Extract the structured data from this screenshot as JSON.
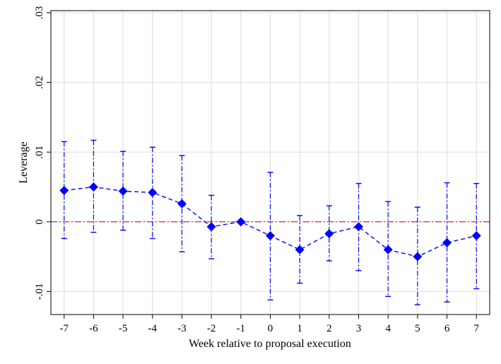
{
  "chart_data": {
    "type": "scatter",
    "xlabel": "Week relative to proposal execution",
    "ylabel": "Leverage",
    "x": [
      -7,
      -6,
      -5,
      -4,
      -3,
      -2,
      -1,
      0,
      1,
      2,
      3,
      4,
      5,
      6,
      7
    ],
    "series": [
      {
        "values": [
          0.0045,
          0.005,
          0.0044,
          0.0042,
          0.0026,
          -0.0007,
          0.0,
          -0.002,
          -0.004,
          -0.0017,
          -0.0007,
          -0.004,
          -0.005,
          -0.003,
          -0.002
        ],
        "ci_upper": [
          0.0115,
          0.0117,
          0.0101,
          0.0107,
          0.0095,
          0.0038,
          0.0,
          0.0071,
          0.0009,
          0.0023,
          0.0055,
          0.0029,
          0.0021,
          0.0056,
          0.0055
        ],
        "ci_lower": [
          -0.0024,
          -0.0015,
          -0.0012,
          -0.0024,
          -0.0043,
          -0.0053,
          0.0,
          -0.0112,
          -0.0088,
          -0.0056,
          -0.007,
          -0.0107,
          -0.0119,
          -0.0115,
          -0.0096
        ],
        "color": "#0000ff",
        "marker": "diamond",
        "line_style": "dashed"
      }
    ],
    "xticks": [
      -7,
      -6,
      -5,
      -4,
      -3,
      -2,
      -1,
      0,
      1,
      2,
      3,
      4,
      5,
      6,
      7
    ],
    "xtick_labels": [
      "-7",
      "-6",
      "-5",
      "-4",
      "-3",
      "-2",
      "-1",
      "0",
      "1",
      "2",
      "3",
      "4",
      "5",
      "6",
      "7"
    ],
    "yticks": [
      -0.01,
      0,
      0.01,
      0.02,
      0.03
    ],
    "ytick_labels": [
      "-.01",
      "0",
      ".01",
      ".02",
      ".03"
    ],
    "xlim": [
      -7.45,
      7.45
    ],
    "ylim": [
      -0.0133,
      0.0303
    ],
    "reference_line": {
      "y": 0,
      "color": "#b22222",
      "style": "dash-dot"
    },
    "grid": true,
    "grid_color": "#e0e0e0",
    "legend": "none"
  }
}
